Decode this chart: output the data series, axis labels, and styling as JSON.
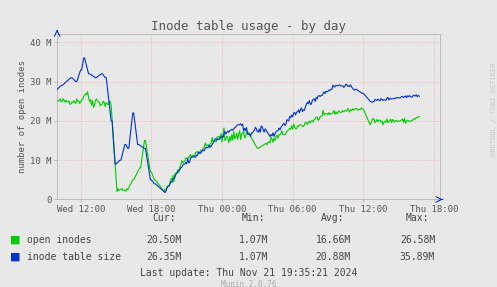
{
  "title": "Inode table usage - by day",
  "ylabel": "number of open inodes",
  "background_color": "#e8e8e8",
  "plot_bg_color": "#e8e8e8",
  "grid_color": "#ffaaaa",
  "ytick_labels": [
    "0",
    "10 M",
    "20 M",
    "30 M",
    "40 M"
  ],
  "xtick_labels": [
    "Wed 12:00",
    "Wed 18:00",
    "Thu 00:00",
    "Thu 06:00",
    "Thu 12:00",
    "Thu 18:00"
  ],
  "ylim": [
    0,
    42
  ],
  "line_green_color": "#00cc00",
  "line_blue_color": "#0033cc",
  "legend_green": "open inodes",
  "legend_blue": "inode table size",
  "munin_text": "Munin 2.0.76",
  "watermark": "RRDTOOL / TOBI OETIKER",
  "last_update": "Last update: Thu Nov 21 19:35:21 2024",
  "stats_cur_green": "20.50M",
  "stats_min_green": "1.07M",
  "stats_avg_green": "16.66M",
  "stats_max_green": "26.58M",
  "stats_cur_blue": "26.35M",
  "stats_min_blue": "1.07M",
  "stats_avg_blue": "20.88M",
  "stats_max_blue": "35.89M"
}
